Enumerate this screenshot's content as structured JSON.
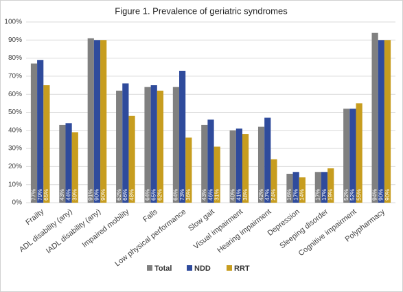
{
  "chart_data": {
    "type": "bar",
    "title": "Figure 1. Prevalence of geriatric syndromes",
    "categories": [
      "Frailty",
      "ADL disability (any)",
      "IADL disability (any)",
      "Impaired mobility",
      "Falls",
      "Low physical performance",
      "Slow gait",
      "Visual impairment",
      "Hearing impairment",
      "Depression",
      "Sleeping disorder",
      "Cognitive impairment",
      "Polypharmacy"
    ],
    "series": [
      {
        "name": "Total",
        "color": "#808080",
        "values": [
          77,
          43,
          91,
          62,
          64,
          64,
          43,
          40,
          42,
          16,
          17,
          52,
          94
        ],
        "value_labels": [
          "77%",
          "43%",
          "91%",
          "62%",
          "64%",
          "64%",
          "43%",
          "40%",
          "42%",
          "16%",
          "17%",
          "52%",
          "94%"
        ]
      },
      {
        "name": "NDD",
        "color": "#2f4b9c",
        "values": [
          79,
          44,
          90,
          66,
          65,
          73,
          46,
          41,
          47,
          17,
          17,
          52,
          90
        ],
        "value_labels": [
          "79%",
          "44%",
          "90%",
          "66%",
          "65%",
          "73%",
          "46%",
          "41%",
          "47%",
          "17%",
          "17%",
          "52%",
          "90%"
        ]
      },
      {
        "name": "RRT",
        "color": "#c79d1f",
        "values": [
          65,
          39,
          90,
          48,
          62,
          36,
          31,
          38,
          24,
          14,
          19,
          55,
          90
        ],
        "value_labels": [
          "65%",
          "39%",
          "90%",
          "48%",
          "62%",
          "36%",
          "31%",
          "38%",
          "24%",
          "14%",
          "19%",
          "55%",
          "90%"
        ]
      }
    ],
    "ylim": [
      0,
      100
    ],
    "yticks": [
      {
        "value": 0,
        "label": "0%"
      },
      {
        "value": 10,
        "label": "10%"
      },
      {
        "value": 20,
        "label": "20%"
      },
      {
        "value": 30,
        "label": "30%"
      },
      {
        "value": 40,
        "label": "40%"
      },
      {
        "value": 50,
        "label": "50%"
      },
      {
        "value": 60,
        "label": "60%"
      },
      {
        "value": 70,
        "label": "70%"
      },
      {
        "value": 80,
        "label": "80%"
      },
      {
        "value": 90,
        "label": "90%"
      },
      {
        "value": 100,
        "label": "100%"
      }
    ],
    "grid": true,
    "legend": "bottom"
  }
}
